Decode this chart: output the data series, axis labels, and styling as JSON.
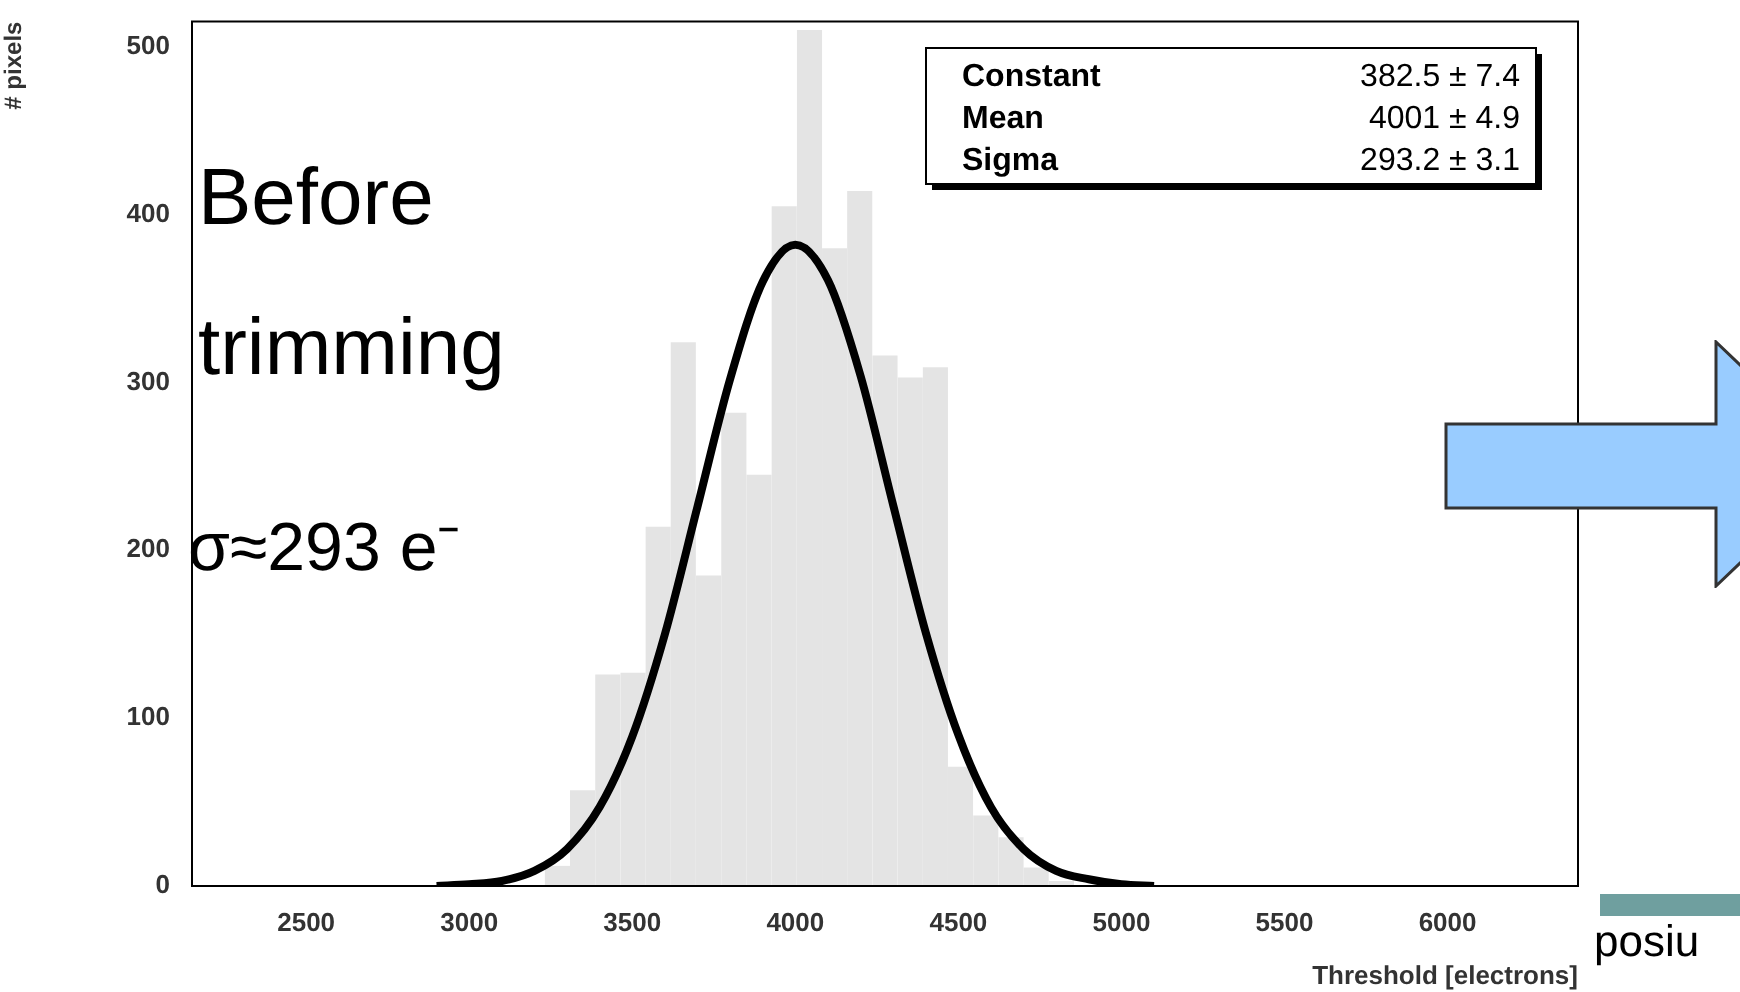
{
  "chart_data": {
    "type": "histogram",
    "xlabel": "Threshold [electrons]",
    "ylabel": "# pixels",
    "bins": [
      3232,
      3309,
      3386,
      3464,
      3541,
      3618,
      3695,
      3773,
      3850,
      3927,
      4005,
      4082,
      4159,
      4236,
      4314,
      4391,
      4468,
      4545,
      4623,
      4700,
      4777,
      4855
    ],
    "values": [
      12,
      57,
      126,
      127,
      214,
      324,
      185,
      282,
      245,
      405,
      510,
      380,
      414,
      316,
      303,
      309,
      71,
      42,
      29,
      11,
      3
    ],
    "color": "#e4e4e4",
    "xlim": [
      2150,
      6400
    ],
    "xticks": [
      2500,
      3000,
      3500,
      4000,
      4500,
      5000,
      5500,
      6000
    ],
    "ylim": [
      0,
      515
    ],
    "yticks": [
      0,
      100,
      200,
      300,
      400,
      500
    ],
    "series": [
      {
        "type": "line",
        "color": "#000000",
        "x": [
          2900,
          3000,
          3100,
          3200,
          3300,
          3400,
          3500,
          3600,
          3700,
          3800,
          3900,
          4000,
          4100,
          4200,
          4300,
          4400,
          4500,
          4600,
          4700,
          4800,
          4900,
          5000,
          5100
        ],
        "values": [
          0,
          1,
          3,
          9,
          22,
          47,
          89,
          150,
          226,
          302,
          360,
          382,
          361,
          304,
          227,
          151,
          90,
          47,
          22,
          9,
          4,
          1,
          0
        ]
      }
    ],
    "annotations": [
      "Before trimming",
      "σ≈293 e⁻",
      "Constant",
      "382.5 ± 7.4",
      "Mean",
      "4001 ± 4.9",
      "Sigma",
      "293.2 ± 3.1",
      "posiu"
    ]
  }
}
